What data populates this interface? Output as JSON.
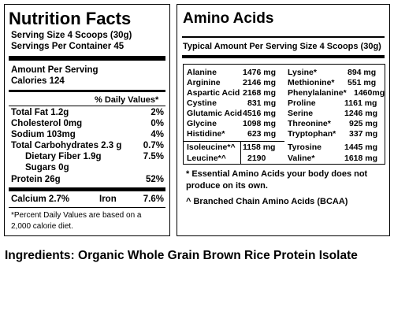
{
  "nutrition": {
    "title": "Nutrition Facts",
    "serving_size": "Serving Size 4 Scoops (30g)",
    "servings_per_container": "Servings Per Container 45",
    "amount_per_serving": "Amount Per Serving",
    "calories": "Calories 124",
    "dv_header": "% Daily Values*",
    "rows": [
      {
        "label": "Total Fat 1.2g",
        "dv": "2%"
      },
      {
        "label": "Cholesterol 0mg",
        "dv": "0%"
      },
      {
        "label": "Sodium 103mg",
        "dv": "4%"
      },
      {
        "label": "Total Carbohydrates 2.3 g",
        "dv": "0.7%"
      },
      {
        "label": "Dietary Fiber 1.9g",
        "dv": "7.5%"
      },
      {
        "label": "Sugars 0g",
        "dv": ""
      },
      {
        "label": "Protein 26g",
        "dv": "52%"
      }
    ],
    "calcium_label": "Calcium 2.7%",
    "iron_label": "Iron",
    "iron_value": "7.6%",
    "footnote_line1": "*Percent Daily Values are based on a",
    "footnote_line2": "2,000 calorie diet."
  },
  "amino": {
    "title": "Amino Acids",
    "subtitle": "Typical Amount Per Serving Size 4 Scoops (30g)",
    "left": [
      {
        "name": "Alanine",
        "amount": "1476 mg"
      },
      {
        "name": "Arginine",
        "amount": "2146 mg"
      },
      {
        "name": "Aspartic Acid",
        "amount": "2168 mg"
      },
      {
        "name": "Cystine",
        "amount": "831 mg"
      },
      {
        "name": "Glutamic Acid",
        "amount": "4516 mg"
      },
      {
        "name": "Glycine",
        "amount": "1098 mg"
      },
      {
        "name": "Histidine*",
        "amount": "623 mg"
      },
      {
        "name": "Isoleucine*^",
        "amount": "1158 mg"
      },
      {
        "name": "Leucine*^",
        "amount": "2190"
      }
    ],
    "right": [
      {
        "name": "Lysine*",
        "amount": "894 mg"
      },
      {
        "name": "Methionine*",
        "amount": "551 mg"
      },
      {
        "name": "Phenylalanine*",
        "amount": "1460mg"
      },
      {
        "name": "Proline",
        "amount": "1161 mg"
      },
      {
        "name": "Serine",
        "amount": "1246 mg"
      },
      {
        "name": "Threonine*",
        "amount": "925 mg"
      },
      {
        "name": "Tryptophan*",
        "amount": "337 mg"
      },
      {
        "name": "Tyrosine",
        "amount": "1445 mg"
      },
      {
        "name": "Valine*",
        "amount": "1618 mg"
      }
    ],
    "note1_line1": "* Essential Amino Acids your body does not",
    "note1_line2": "produce on its own.",
    "note2": "^ Branched Chain Amino Acids (BCAA)"
  },
  "ingredients": "Ingredients: Organic Whole Grain Brown Rice Protein Isolate"
}
